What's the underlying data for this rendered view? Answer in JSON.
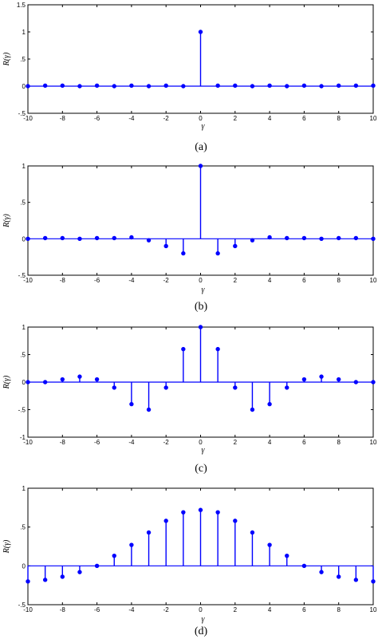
{
  "figure_captions": [
    "(a)",
    "(b)",
    "(c)",
    "(d)"
  ],
  "chart_data": [
    {
      "type": "stem",
      "caption": "(a)",
      "xlabel": "γ",
      "ylabel": "R(γ)",
      "xlim": [
        -10,
        10
      ],
      "ylim": [
        -0.5,
        1.5
      ],
      "xticks": [
        -10,
        -8,
        -6,
        -4,
        -2,
        0,
        2,
        4,
        6,
        8,
        10
      ],
      "yticks": [
        -0.5,
        0,
        0.5,
        1,
        1.5
      ],
      "series": [
        {
          "x": [
            -10,
            -9,
            -8,
            -7,
            -6,
            -5,
            -4,
            -3,
            -2,
            -1,
            0,
            1,
            2,
            3,
            4,
            5,
            6,
            7,
            8,
            9,
            10
          ],
          "values": [
            0,
            0.01,
            0.01,
            0,
            0.01,
            0,
            0.01,
            0,
            0.01,
            0,
            1,
            0.01,
            0.01,
            0,
            0.01,
            0,
            0.01,
            0,
            0.01,
            0.01,
            0.01
          ]
        }
      ]
    },
    {
      "type": "stem",
      "caption": "(b)",
      "xlabel": "γ",
      "ylabel": "R(γ)",
      "xlim": [
        -10,
        10
      ],
      "ylim": [
        -0.5,
        1
      ],
      "xticks": [
        -10,
        -8,
        -6,
        -4,
        -2,
        0,
        2,
        4,
        6,
        8,
        10
      ],
      "yticks": [
        -0.5,
        0,
        0.5,
        1
      ],
      "series": [
        {
          "x": [
            -10,
            -9,
            -8,
            -7,
            -6,
            -5,
            -4,
            -3,
            -2,
            -1,
            0,
            1,
            2,
            3,
            4,
            5,
            6,
            7,
            8,
            9,
            10
          ],
          "values": [
            0,
            0.01,
            0.01,
            0,
            0.01,
            0.01,
            0.02,
            -0.02,
            -0.1,
            -0.2,
            1,
            -0.2,
            -0.1,
            -0.02,
            0.02,
            0.01,
            0.01,
            0,
            0.01,
            0.01,
            0
          ]
        }
      ]
    },
    {
      "type": "stem",
      "caption": "(c)",
      "xlabel": "γ",
      "ylabel": "R(γ)",
      "xlim": [
        -10,
        10
      ],
      "ylim": [
        -1,
        1
      ],
      "xticks": [
        -10,
        -8,
        -6,
        -4,
        -2,
        0,
        2,
        4,
        6,
        8,
        10
      ],
      "yticks": [
        -1,
        -0.5,
        0,
        0.5,
        1
      ],
      "series": [
        {
          "x": [
            -10,
            -9,
            -8,
            -7,
            -6,
            -5,
            -4,
            -3,
            -2,
            -1,
            0,
            1,
            2,
            3,
            4,
            5,
            6,
            7,
            8,
            9,
            10
          ],
          "values": [
            0,
            0,
            0.05,
            0.1,
            0.05,
            -0.1,
            -0.4,
            -0.5,
            -0.1,
            0.6,
            1,
            0.6,
            -0.1,
            -0.5,
            -0.4,
            -0.1,
            0.05,
            0.1,
            0.05,
            0,
            0
          ]
        }
      ]
    },
    {
      "type": "stem",
      "caption": "(d)",
      "xlabel": "γ",
      "ylabel": "R(γ)",
      "xlim": [
        -10,
        10
      ],
      "ylim": [
        -0.5,
        1
      ],
      "xticks": [
        -10,
        -8,
        -6,
        -4,
        -2,
        0,
        2,
        4,
        6,
        8,
        10
      ],
      "yticks": [
        -0.5,
        0,
        0.5,
        1
      ],
      "series": [
        {
          "x": [
            -10,
            -9,
            -8,
            -7,
            -6,
            -5,
            -4,
            -3,
            -2,
            -1,
            0,
            1,
            2,
            3,
            4,
            5,
            6,
            7,
            8,
            9,
            10
          ],
          "values": [
            -0.2,
            -0.18,
            -0.14,
            -0.08,
            0,
            0.13,
            0.27,
            0.43,
            0.58,
            0.69,
            0.72,
            0.69,
            0.58,
            0.43,
            0.27,
            0.13,
            0,
            -0.08,
            -0.14,
            -0.18,
            -0.2
          ]
        }
      ]
    }
  ],
  "colors": {
    "stem": "#0000ff",
    "axes": "#000000"
  }
}
